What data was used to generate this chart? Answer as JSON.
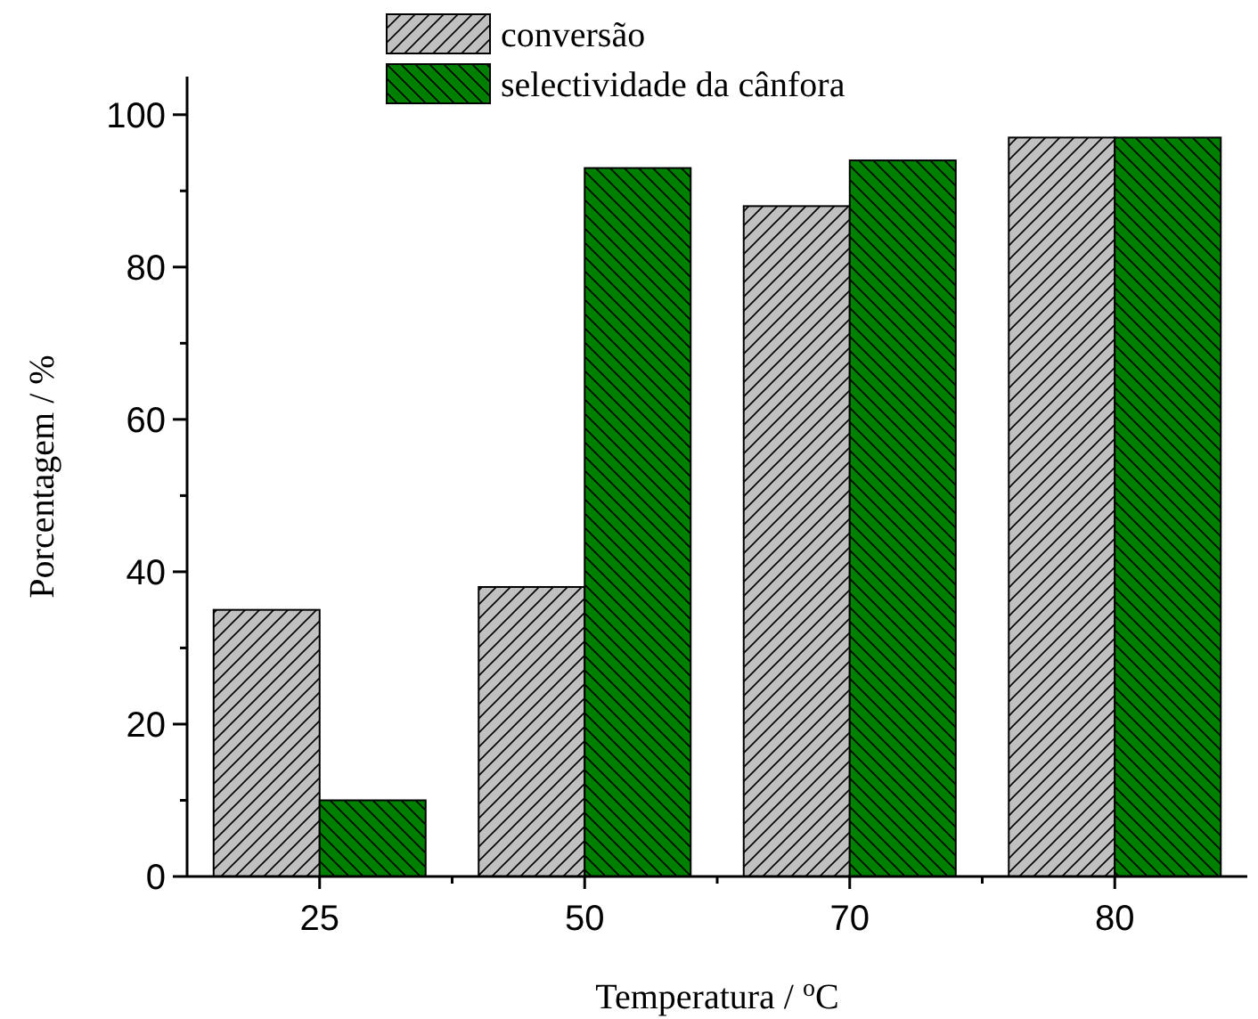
{
  "chart_data": {
    "type": "bar",
    "xlabel": "Temperatura / $^{o}$C",
    "ylabel": "Porcentagem / %",
    "categories": [
      "25",
      "50",
      "70",
      "80"
    ],
    "series": [
      {
        "name": "conversão",
        "color": "#c0c0c0",
        "values": [
          35,
          38,
          88,
          97
        ]
      },
      {
        "name": "selectividade da cânfora",
        "color": "#008000",
        "values": [
          10,
          93,
          94,
          97
        ]
      }
    ],
    "ylim": [
      0,
      105
    ],
    "yticks": [
      0,
      {
        "value": 10,
        "label": null
      },
      20,
      {
        "value": 30,
        "label": null
      },
      40,
      {
        "value": 50,
        "label": null
      },
      60,
      {
        "value": 70,
        "label": null
      },
      80,
      {
        "value": 90,
        "label": null
      },
      100
    ],
    "grid": false,
    "legend": "top"
  }
}
